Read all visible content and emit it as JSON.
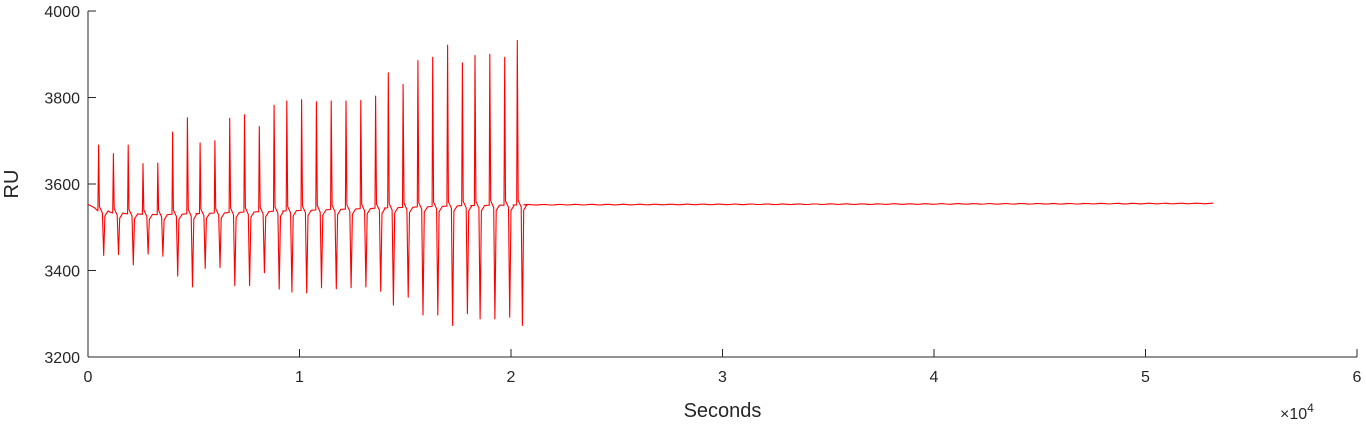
{
  "chart_data": {
    "type": "line",
    "title": "",
    "xlabel": "Seconds",
    "ylabel": "RU",
    "x_exponent_label": "×10",
    "x_exponent_power": "4",
    "xlim": [
      0,
      6
    ],
    "ylim": [
      3200,
      4000
    ],
    "x_ticks": [
      0,
      1,
      2,
      3,
      4,
      5,
      6
    ],
    "x_tick_labels": [
      "0",
      "1",
      "2",
      "3",
      "4",
      "5",
      "6"
    ],
    "y_ticks": [
      3200,
      3400,
      3600,
      3800,
      4000
    ],
    "y_tick_labels": [
      "3200",
      "3400",
      "3600",
      "3800",
      "4000"
    ],
    "grid": false,
    "legend": "none",
    "series_color": "#ff0000",
    "x_end": 5.32,
    "start_level": 3553,
    "injection_cycles": [
      {
        "x": 0.05,
        "peak": 3690,
        "trough": 3435,
        "baseline": 3538
      },
      {
        "x": 0.12,
        "peak": 3670,
        "trough": 3437,
        "baseline": 3533
      },
      {
        "x": 0.19,
        "peak": 3690,
        "trough": 3413,
        "baseline": 3531
      },
      {
        "x": 0.26,
        "peak": 3647,
        "trough": 3438,
        "baseline": 3530
      },
      {
        "x": 0.33,
        "peak": 3648,
        "trough": 3433,
        "baseline": 3529
      },
      {
        "x": 0.4,
        "peak": 3720,
        "trough": 3387,
        "baseline": 3530
      },
      {
        "x": 0.47,
        "peak": 3753,
        "trough": 3362,
        "baseline": 3531
      },
      {
        "x": 0.53,
        "peak": 3695,
        "trough": 3405,
        "baseline": 3532
      },
      {
        "x": 0.6,
        "peak": 3700,
        "trough": 3407,
        "baseline": 3533
      },
      {
        "x": 0.67,
        "peak": 3752,
        "trough": 3365,
        "baseline": 3534
      },
      {
        "x": 0.74,
        "peak": 3760,
        "trough": 3365,
        "baseline": 3535
      },
      {
        "x": 0.81,
        "peak": 3733,
        "trough": 3395,
        "baseline": 3536
      },
      {
        "x": 0.88,
        "peak": 3782,
        "trough": 3357,
        "baseline": 3537
      },
      {
        "x": 0.94,
        "peak": 3792,
        "trough": 3350,
        "baseline": 3538
      },
      {
        "x": 1.01,
        "peak": 3795,
        "trough": 3348,
        "baseline": 3539
      },
      {
        "x": 1.08,
        "peak": 3790,
        "trough": 3360,
        "baseline": 3540
      },
      {
        "x": 1.15,
        "peak": 3792,
        "trough": 3358,
        "baseline": 3541
      },
      {
        "x": 1.22,
        "peak": 3792,
        "trough": 3360,
        "baseline": 3542
      },
      {
        "x": 1.29,
        "peak": 3793,
        "trough": 3362,
        "baseline": 3543
      },
      {
        "x": 1.36,
        "peak": 3803,
        "trough": 3352,
        "baseline": 3544
      },
      {
        "x": 1.42,
        "peak": 3857,
        "trough": 3320,
        "baseline": 3545
      },
      {
        "x": 1.49,
        "peak": 3830,
        "trough": 3338,
        "baseline": 3546
      },
      {
        "x": 1.56,
        "peak": 3885,
        "trough": 3297,
        "baseline": 3547
      },
      {
        "x": 1.63,
        "peak": 3893,
        "trough": 3297,
        "baseline": 3548
      },
      {
        "x": 1.7,
        "peak": 3921,
        "trough": 3273,
        "baseline": 3549
      },
      {
        "x": 1.77,
        "peak": 3880,
        "trough": 3300,
        "baseline": 3550
      },
      {
        "x": 1.83,
        "peak": 3897,
        "trough": 3288,
        "baseline": 3550
      },
      {
        "x": 1.9,
        "peak": 3900,
        "trough": 3288,
        "baseline": 3551
      },
      {
        "x": 1.97,
        "peak": 3893,
        "trough": 3292,
        "baseline": 3551
      },
      {
        "x": 2.03,
        "peak": 3932,
        "trough": 3273,
        "baseline": 3552
      }
    ],
    "steady_state": {
      "x_start": 2.06,
      "x_end": 5.32,
      "y_start": 3552,
      "y_end": 3555
    }
  }
}
